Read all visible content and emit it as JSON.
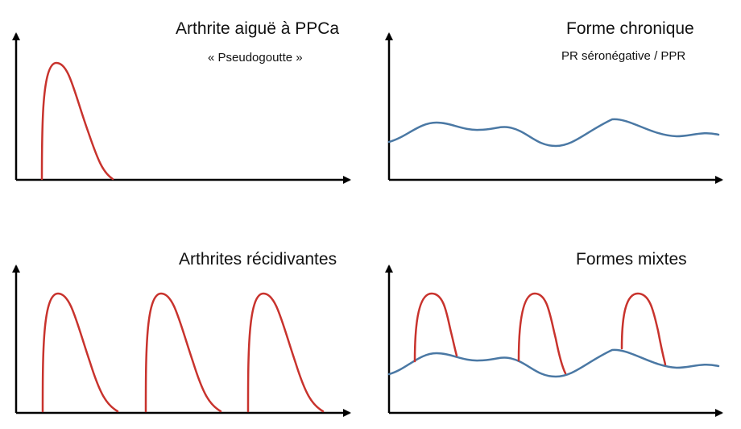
{
  "colors": {
    "acute": "#c8332d",
    "chronic": "#4a78a4",
    "axis": "#000000"
  },
  "panels": [
    {
      "id": "acute",
      "title": "Arthrite aiguë à PPCa",
      "subtitle": "« Pseudogoutte »"
    },
    {
      "id": "chronic",
      "title": "Forme chronique",
      "subtitle": "PR séronégative / PPR"
    },
    {
      "id": "recurrent",
      "title": "Arthrites récidivantes",
      "subtitle": ""
    },
    {
      "id": "mixed",
      "title": "Formes mixtes",
      "subtitle": ""
    }
  ]
}
